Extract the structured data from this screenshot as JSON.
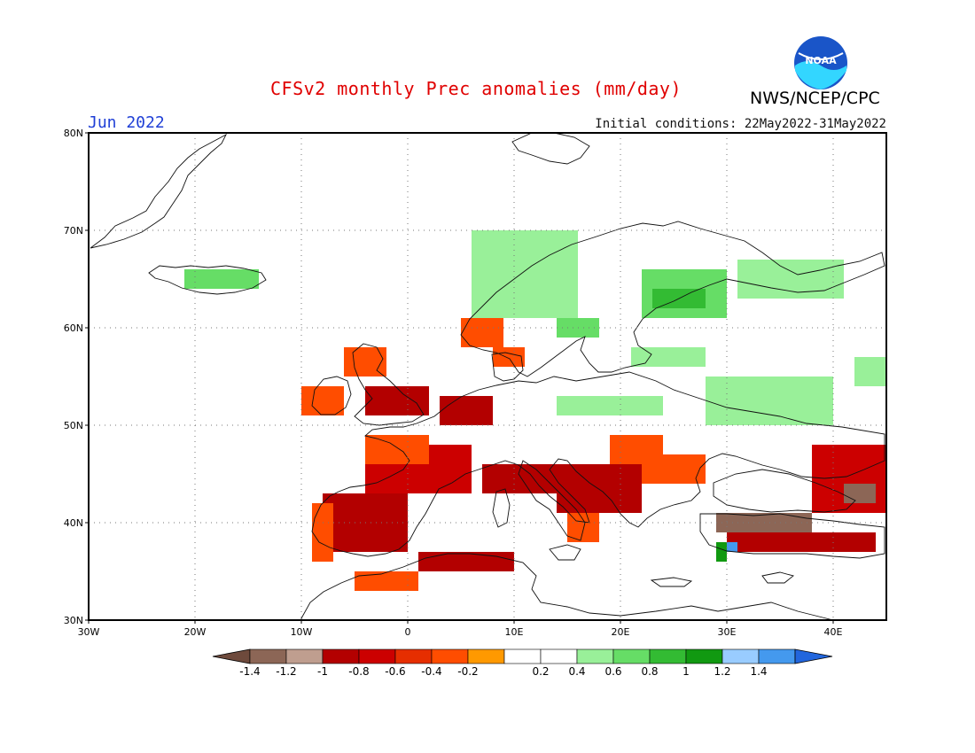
{
  "title": "CFSv2 monthly Prec anomalies (mm/day)",
  "agency": "NWS/NCEP/CPC",
  "month": "Jun 2022",
  "initial_conditions": "Initial conditions: 22May2022-31May2022",
  "logo_text": "NOAA",
  "map": {
    "lon_range": [
      -30,
      45
    ],
    "lat_range": [
      30,
      80
    ],
    "lat_labels": [
      {
        "lat": 80,
        "label": "80N"
      },
      {
        "lat": 70,
        "label": "70N"
      },
      {
        "lat": 60,
        "label": "60N"
      },
      {
        "lat": 50,
        "label": "50N"
      },
      {
        "lat": 40,
        "label": "40N"
      },
      {
        "lat": 30,
        "label": "30N"
      }
    ],
    "lon_labels": [
      {
        "lon": -30,
        "label": "30W"
      },
      {
        "lon": -20,
        "label": "20W"
      },
      {
        "lon": -10,
        "label": "10W"
      },
      {
        "lon": 0,
        "label": "0"
      },
      {
        "lon": 10,
        "label": "10E"
      },
      {
        "lon": 20,
        "label": "20E"
      },
      {
        "lon": 30,
        "label": "30E"
      },
      {
        "lon": 40,
        "label": "40E"
      }
    ],
    "anomaly_regions": [
      {
        "name": "Iberia",
        "value": -0.8,
        "lon": [
          -8,
          0
        ],
        "lat": [
          37,
          43
        ]
      },
      {
        "name": "Iberia west",
        "value": -0.4,
        "lon": [
          -9,
          -7
        ],
        "lat": [
          36,
          42
        ]
      },
      {
        "name": "France",
        "value": -0.6,
        "lon": [
          -4,
          6
        ],
        "lat": [
          43,
          48
        ]
      },
      {
        "name": "France north",
        "value": -0.4,
        "lon": [
          -4,
          2
        ],
        "lat": [
          46,
          49
        ]
      },
      {
        "name": "UK",
        "value": -0.8,
        "lon": [
          -4,
          2
        ],
        "lat": [
          51,
          54
        ]
      },
      {
        "name": "Ireland",
        "value": -0.4,
        "lon": [
          -10,
          -6
        ],
        "lat": [
          51,
          54
        ]
      },
      {
        "name": "Scotland",
        "value": -0.4,
        "lon": [
          -6,
          -2
        ],
        "lat": [
          55,
          58
        ]
      },
      {
        "name": "Benelux",
        "value": -0.8,
        "lon": [
          3,
          8
        ],
        "lat": [
          50,
          53
        ]
      },
      {
        "name": "Alps Italy",
        "value": -0.8,
        "lon": [
          7,
          14
        ],
        "lat": [
          43,
          46
        ]
      },
      {
        "name": "South Italy",
        "value": -0.4,
        "lon": [
          15,
          18
        ],
        "lat": [
          38,
          41
        ]
      },
      {
        "name": "Balkans",
        "value": -0.8,
        "lon": [
          14,
          22
        ],
        "lat": [
          41,
          46
        ]
      },
      {
        "name": "Hungary",
        "value": -0.4,
        "lon": [
          19,
          24
        ],
        "lat": [
          46,
          49
        ]
      },
      {
        "name": "Romania",
        "value": -0.4,
        "lon": [
          22,
          28
        ],
        "lat": [
          44,
          47
        ]
      },
      {
        "name": "North Africa",
        "value": -0.8,
        "lon": [
          1,
          10
        ],
        "lat": [
          35,
          37
        ]
      },
      {
        "name": "North Africa west",
        "value": -0.4,
        "lon": [
          -5,
          1
        ],
        "lat": [
          33,
          35
        ]
      },
      {
        "name": "Turkey",
        "value": -1.2,
        "lon": [
          29,
          38
        ],
        "lat": [
          39,
          41
        ]
      },
      {
        "name": "Turkey south",
        "value": -0.8,
        "lon": [
          30,
          44
        ],
        "lat": [
          37,
          39
        ]
      },
      {
        "name": "Caucasus",
        "value": -0.6,
        "lon": [
          38,
          45
        ],
        "lat": [
          41,
          48
        ]
      },
      {
        "name": "Caucasus core",
        "value": -1.2,
        "lon": [
          41,
          44
        ],
        "lat": [
          42,
          44
        ]
      },
      {
        "name": "Denmark",
        "value": -0.4,
        "lon": [
          8,
          11
        ],
        "lat": [
          56,
          58
        ]
      },
      {
        "name": "South Norway",
        "value": -0.4,
        "lon": [
          5,
          9
        ],
        "lat": [
          58,
          61
        ]
      },
      {
        "name": "Cyprus area",
        "value": 0.8,
        "lon": [
          29,
          30
        ],
        "lat": [
          36,
          38
        ]
      },
      {
        "name": "SW Turkey",
        "value": 1.2,
        "lon": [
          30,
          31
        ],
        "lat": [
          37,
          38
        ]
      },
      {
        "name": "Iceland",
        "value": 0.4,
        "lon": [
          -21,
          -14
        ],
        "lat": [
          64,
          66
        ]
      },
      {
        "name": "Norway",
        "value": 0.2,
        "lon": [
          6,
          16
        ],
        "lat": [
          61,
          70
        ]
      },
      {
        "name": "Sweden",
        "value": 0.4,
        "lon": [
          14,
          18
        ],
        "lat": [
          59,
          61
        ]
      },
      {
        "name": "Finland",
        "value": 0.4,
        "lon": [
          22,
          30
        ],
        "lat": [
          61,
          66
        ]
      },
      {
        "name": "Finland core",
        "value": 0.6,
        "lon": [
          23,
          28
        ],
        "lat": [
          62,
          64
        ]
      },
      {
        "name": "Russia north",
        "value": 0.2,
        "lon": [
          31,
          41
        ],
        "lat": [
          63,
          67
        ]
      },
      {
        "name": "Baltics",
        "value": 0.2,
        "lon": [
          21,
          28
        ],
        "lat": [
          56,
          58
        ]
      },
      {
        "name": "Poland",
        "value": 0.2,
        "lon": [
          14,
          24
        ],
        "lat": [
          51,
          53
        ]
      },
      {
        "name": "Belarus",
        "value": 0.2,
        "lon": [
          28,
          40
        ],
        "lat": [
          50,
          55
        ]
      },
      {
        "name": "Russia east",
        "value": 0.2,
        "lon": [
          42,
          45
        ],
        "lat": [
          54,
          57
        ]
      }
    ]
  },
  "colorbar": {
    "colors": [
      "#6e4a3c",
      "#8c6656",
      "#bf9e8f",
      "#b30000",
      "#cc0000",
      "#e62e00",
      "#ff4d00",
      "#ff9900",
      "#ffffff",
      "#ffffff",
      "#99f099",
      "#66dd66",
      "#33bb33",
      "#119911",
      "#99ccff",
      "#4499ee",
      "#2266dd"
    ],
    "labels": [
      "-1.4",
      "-1.2",
      "-1",
      "-0.8",
      "-0.6",
      "-0.4",
      "-0.2",
      "0.2",
      "0.4",
      "0.6",
      "0.8",
      "1",
      "1.2",
      "1.4"
    ]
  }
}
